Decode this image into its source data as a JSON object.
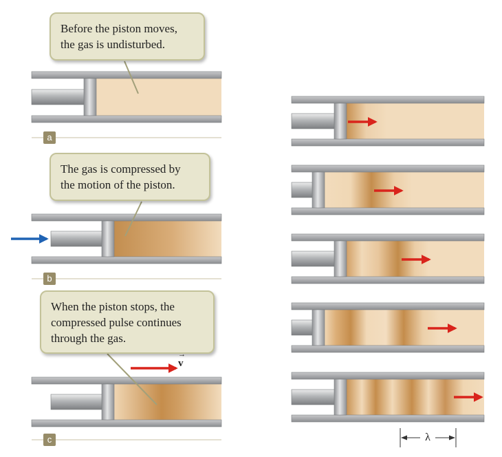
{
  "callouts": {
    "a": [
      "Before the piston moves,",
      "the gas is undisturbed."
    ],
    "b": [
      "The gas is compressed by",
      "the motion of the piston."
    ],
    "c": [
      "When the piston stops, the",
      "compressed pulse continues",
      "through the gas."
    ]
  },
  "panel_labels": {
    "a": "a",
    "b": "b",
    "c": "c"
  },
  "velocity_label": "v",
  "velocity_arrow_glyph": "→",
  "wavelength_label": "λ",
  "colors": {
    "gas": "#f2dcbd",
    "compressed_gas": "#c49052",
    "tube": "#a9abae",
    "piston": "#b9bbbd",
    "arrow_red": "#d9241c",
    "arrow_blue": "#1f63b4",
    "callout_bg": "#e8e6cf",
    "label_bg": "#978c68"
  }
}
